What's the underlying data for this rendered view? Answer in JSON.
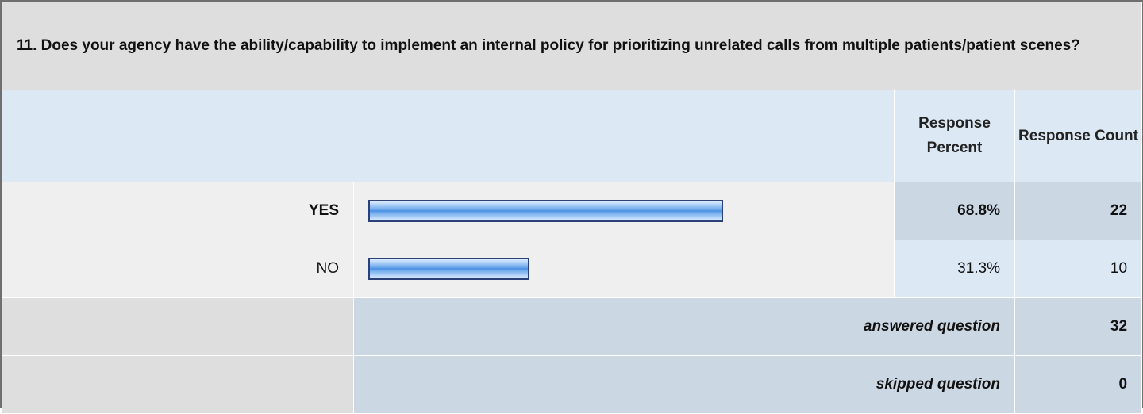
{
  "question": {
    "title": "11. Does your agency have the ability/capability to implement an internal policy for prioritizing unrelated calls from multiple patients/patient scenes?"
  },
  "headers": {
    "response_percent": "Response Percent",
    "response_count": "Response Count"
  },
  "rows": [
    {
      "label": "YES",
      "percent_text": "68.8%",
      "count": "22",
      "fraction": 0.688
    },
    {
      "label": "NO",
      "percent_text": "31.3%",
      "count": "10",
      "fraction": 0.313
    }
  ],
  "summary": {
    "answered_label": "answered question",
    "answered_count": "32",
    "skipped_label": "skipped question",
    "skipped_count": "0"
  },
  "colors": {
    "bar_fill": "#4a8fe4",
    "bar_border": "#2b3f78",
    "header_bg": "#dde8f5",
    "highlight_bg": "#ccd7e4"
  }
}
